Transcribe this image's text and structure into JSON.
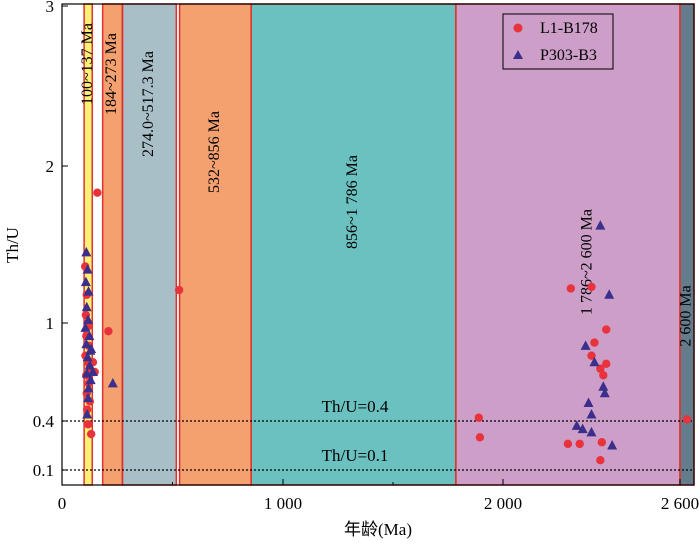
{
  "chart_data": {
    "type": "scatter",
    "xlabel": "年龄(Ma)",
    "ylabel": "Th/U",
    "xlim": [
      0,
      2700
    ],
    "x_ticks": [
      {
        "value": 0,
        "label": "0"
      },
      {
        "value": 1000,
        "label": "1 000"
      },
      {
        "value": 2000,
        "label": "2 000"
      },
      {
        "value": 2600,
        "label": "2 600"
      }
    ],
    "y_ticks": [
      {
        "value": 0.1,
        "label": "0.1"
      },
      {
        "value": 0.4,
        "label": "0.4"
      },
      {
        "value": 1,
        "label": "1"
      },
      {
        "value": 2,
        "label": "2"
      },
      {
        "value": 3,
        "label": "3"
      }
    ],
    "y_scale": "custom (tick positions as printed)",
    "bands": [
      {
        "label": "100~137 Ma",
        "start": 100,
        "end": 137,
        "color": "#fbf078"
      },
      {
        "label": "184~273 Ma",
        "start": 184,
        "end": 273,
        "color": "#f4a06f"
      },
      {
        "label": "274.0~517.3 Ma",
        "start": 274,
        "end": 517.3,
        "color": "#a8bfc7"
      },
      {
        "label": "532~856 Ma",
        "start": 532,
        "end": 856,
        "color": "#f4a06f"
      },
      {
        "label": "856~1 786 Ma",
        "start": 856,
        "end": 1786,
        "color": "#6bc0c0"
      },
      {
        "label": "1 786~2 600 Ma",
        "start": 1786,
        "end": 2600,
        "color": "#cc9ec8"
      },
      {
        "label": "2 600 Ma",
        "start": 2600,
        "end": 2700,
        "color": "#647c8c"
      }
    ],
    "reference_lines": [
      {
        "label": "Th/U=0.4",
        "y": 0.4
      },
      {
        "label": "Th/U=0.1",
        "y": 0.1
      }
    ],
    "legend": {
      "position": "top-right"
    },
    "series": [
      {
        "name": "L1-B178",
        "marker": "circle",
        "color": "#e8323c",
        "points": [
          [
            105,
            1.36
          ],
          [
            112,
            1.18
          ],
          [
            108,
            1.05
          ],
          [
            118,
            0.98
          ],
          [
            110,
            0.92
          ],
          [
            122,
            0.86
          ],
          [
            106,
            0.8
          ],
          [
            116,
            0.76
          ],
          [
            124,
            0.72
          ],
          [
            110,
            0.68
          ],
          [
            120,
            0.63
          ],
          [
            112,
            0.57
          ],
          [
            126,
            0.52
          ],
          [
            114,
            0.47
          ],
          [
            118,
            0.38
          ],
          [
            140,
            0.76
          ],
          [
            148,
            0.7
          ],
          [
            132,
            0.32
          ],
          [
            160,
            1.83
          ],
          [
            210,
            0.95
          ],
          [
            530,
            1.21
          ],
          [
            1890,
            0.42
          ],
          [
            1895,
            0.3
          ],
          [
            2230,
            1.22
          ],
          [
            2220,
            0.26
          ],
          [
            2260,
            0.26
          ],
          [
            2300,
            1.23
          ],
          [
            2300,
            0.8
          ],
          [
            2310,
            0.88
          ],
          [
            2330,
            0.72
          ],
          [
            2340,
            0.68
          ],
          [
            2350,
            0.96
          ],
          [
            2350,
            0.75
          ],
          [
            2335,
            0.27
          ],
          [
            2330,
            0.16
          ],
          [
            2650,
            0.41
          ]
        ]
      },
      {
        "name": "P303-B3",
        "marker": "triangle",
        "color": "#3c2f8c",
        "points": [
          [
            110,
            1.45
          ],
          [
            116,
            1.34
          ],
          [
            108,
            1.26
          ],
          [
            120,
            1.2
          ],
          [
            112,
            1.1
          ],
          [
            118,
            1.02
          ],
          [
            106,
            0.97
          ],
          [
            124,
            0.92
          ],
          [
            110,
            0.87
          ],
          [
            128,
            0.83
          ],
          [
            116,
            0.79
          ],
          [
            126,
            0.74
          ],
          [
            112,
            0.69
          ],
          [
            130,
            0.65
          ],
          [
            120,
            0.6
          ],
          [
            118,
            0.54
          ],
          [
            114,
            0.44
          ],
          [
            132,
            0.84
          ],
          [
            140,
            0.7
          ],
          [
            230,
            0.63
          ],
          [
            2330,
            1.62
          ],
          [
            2360,
            1.18
          ],
          [
            2280,
            0.86
          ],
          [
            2310,
            0.76
          ],
          [
            2340,
            0.61
          ],
          [
            2345,
            0.57
          ],
          [
            2290,
            0.51
          ],
          [
            2300,
            0.44
          ],
          [
            2250,
            0.37
          ],
          [
            2270,
            0.35
          ],
          [
            2300,
            0.33
          ],
          [
            2370,
            0.25
          ]
        ]
      }
    ]
  }
}
